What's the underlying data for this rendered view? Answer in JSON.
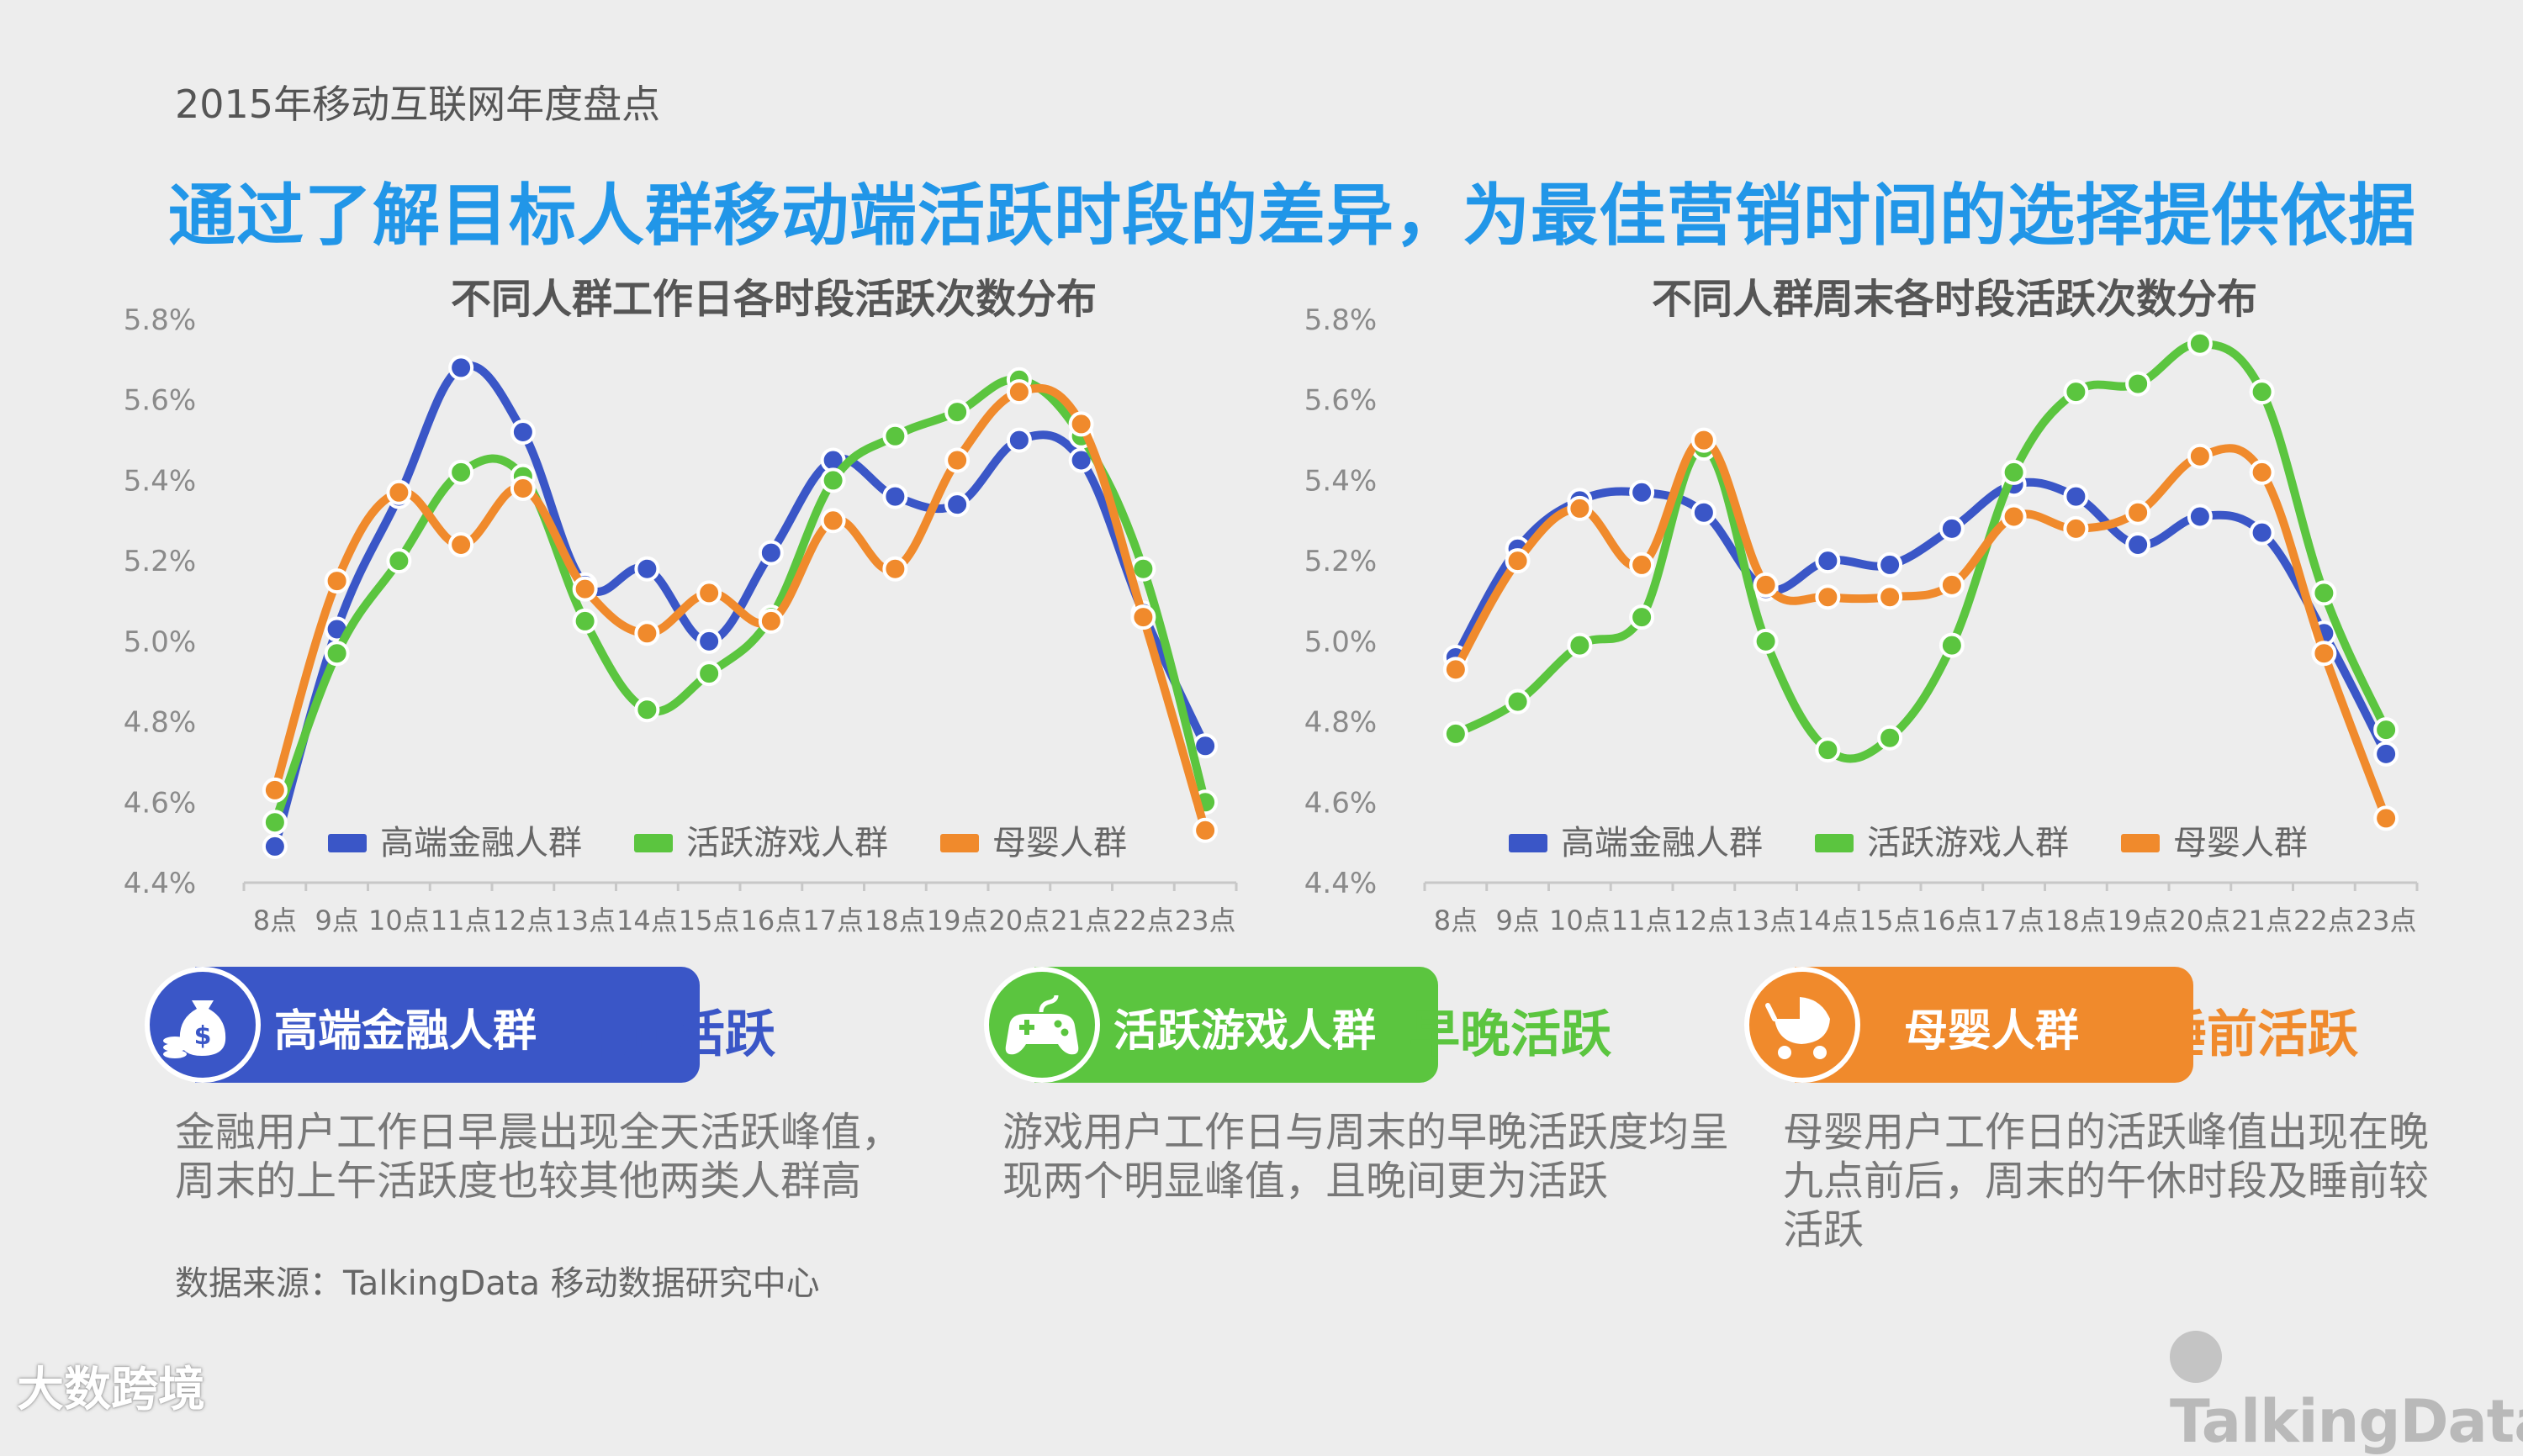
{
  "header": {
    "subtitle": "2015年移动互联网年度盘点",
    "headline": "通过了解目标人群移动端活跃时段的差异，为最佳营销时间的选择提供依据"
  },
  "colors": {
    "finance": "#3a56c7",
    "game": "#5bc53f",
    "baby": "#f08a2c",
    "headline": "#2196e8"
  },
  "chart_data": [
    {
      "type": "line",
      "title": "不同人群工作日各时段活跃次数分布",
      "categories": [
        "8点",
        "9点",
        "10点",
        "11点",
        "12点",
        "13点",
        "14点",
        "15点",
        "16点",
        "17点",
        "18点",
        "19点",
        "20点",
        "21点",
        "22点",
        "23点"
      ],
      "y_ticks": [
        "4.4%",
        "4.6%",
        "4.8%",
        "5.0%",
        "5.2%",
        "5.4%",
        "5.6%",
        "5.8%"
      ],
      "ylim": [
        4.4,
        5.8
      ],
      "legend_position": "bottom",
      "series": [
        {
          "name": "高端金融人群",
          "color_key": "finance",
          "values": [
            4.49,
            5.03,
            5.36,
            5.68,
            5.52,
            5.14,
            5.18,
            5.0,
            5.22,
            5.45,
            5.36,
            5.34,
            5.5,
            5.45,
            5.07,
            4.74
          ]
        },
        {
          "name": "活跃游戏人群",
          "color_key": "game",
          "values": [
            4.55,
            4.97,
            5.2,
            5.42,
            5.41,
            5.05,
            4.83,
            4.92,
            5.06,
            5.4,
            5.51,
            5.57,
            5.65,
            5.51,
            5.18,
            4.6
          ]
        },
        {
          "name": "母婴人群",
          "color_key": "baby",
          "values": [
            4.63,
            5.15,
            5.37,
            5.24,
            5.38,
            5.13,
            5.02,
            5.12,
            5.05,
            5.3,
            5.18,
            5.45,
            5.62,
            5.54,
            5.06,
            4.53
          ]
        }
      ]
    },
    {
      "type": "line",
      "title": "不同人群周末各时段活跃次数分布",
      "categories": [
        "8点",
        "9点",
        "10点",
        "11点",
        "12点",
        "13点",
        "14点",
        "15点",
        "16点",
        "17点",
        "18点",
        "19点",
        "20点",
        "21点",
        "22点",
        "23点"
      ],
      "y_ticks": [
        "4.4%",
        "4.6%",
        "4.8%",
        "5.0%",
        "5.2%",
        "5.4%",
        "5.6%",
        "5.8%"
      ],
      "ylim": [
        4.4,
        5.8
      ],
      "legend_position": "bottom",
      "series": [
        {
          "name": "高端金融人群",
          "color_key": "finance",
          "values": [
            4.96,
            5.23,
            5.35,
            5.37,
            5.32,
            5.13,
            5.2,
            5.19,
            5.28,
            5.39,
            5.36,
            5.24,
            5.31,
            5.27,
            5.02,
            4.72
          ]
        },
        {
          "name": "活跃游戏人群",
          "color_key": "game",
          "values": [
            4.77,
            4.85,
            4.99,
            5.06,
            5.48,
            5.0,
            4.73,
            4.76,
            4.99,
            5.42,
            5.62,
            5.64,
            5.74,
            5.62,
            5.12,
            4.78
          ]
        },
        {
          "name": "母婴人群",
          "color_key": "baby",
          "values": [
            4.93,
            5.2,
            5.33,
            5.19,
            5.5,
            5.14,
            5.11,
            5.11,
            5.14,
            5.31,
            5.28,
            5.32,
            5.46,
            5.42,
            4.97,
            4.56
          ]
        }
      ]
    }
  ],
  "groups": [
    {
      "label": "高端金融人群",
      "icon": "money-bag-icon",
      "tag": "早起活跃",
      "desc": "金融用户工作日早晨出现全天活跃峰值，周末的上午活跃度也较其他两类人群高"
    },
    {
      "label": "活跃游戏人群",
      "icon": "gamepad-icon",
      "tag": "早晚活跃",
      "desc": "游戏用户工作日与周末的早晚活跃度均呈现两个明显峰值，且晚间更为活跃"
    },
    {
      "label": "母婴人群",
      "icon": "stroller-icon",
      "tag": "睡前活跃",
      "desc": "母婴用户工作日的活跃峰值出现在晚九点前后，周末的午休时段及睡前较活跃"
    }
  ],
  "footer": {
    "source": "数据来源：TalkingData 移动数据研究中心",
    "watermark": "大数跨境",
    "brand": "TalkingData"
  }
}
